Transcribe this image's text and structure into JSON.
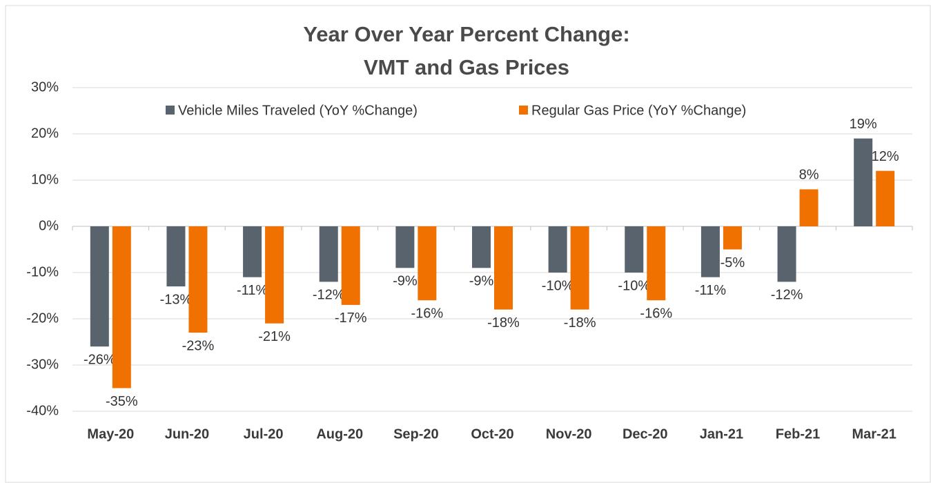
{
  "chart_data": {
    "type": "bar",
    "title": [
      "Year Over Year Percent Change:",
      "VMT and Gas Prices"
    ],
    "categories": [
      "May-20",
      "Jun-20",
      "Jul-20",
      "Aug-20",
      "Sep-20",
      "Oct-20",
      "Nov-20",
      "Dec-20",
      "Jan-21",
      "Feb-21",
      "Mar-21"
    ],
    "series": [
      {
        "name": "Vehicle Miles Traveled (YoY %Change)",
        "color": "#59636d",
        "values": [
          -26,
          -13,
          -11,
          -12,
          -9,
          -9,
          -10,
          -10,
          -11,
          -12,
          19
        ],
        "value_labels": [
          "-26%",
          "-13%",
          "-11%",
          "-12%",
          "-9%",
          "-9%",
          "-10%",
          "-10%",
          "-11%",
          "-12%",
          "19%"
        ]
      },
      {
        "name": "Regular Gas Price (YoY %Change)",
        "color": "#f07000",
        "values": [
          -35,
          -23,
          -21,
          -17,
          -16,
          -18,
          -18,
          -16,
          -5,
          8,
          12
        ],
        "value_labels": [
          "-35%",
          "-23%",
          "-21%",
          "-17%",
          "-16%",
          "-18%",
          "-18%",
          "-16%",
          "-5%",
          "8%",
          "12%"
        ]
      }
    ],
    "ylim": [
      -40,
      30
    ],
    "yticks": [
      {
        "value": -40,
        "label": "-40%"
      },
      {
        "value": -30,
        "label": "-30%"
      },
      {
        "value": -20,
        "label": "-20%"
      },
      {
        "value": -10,
        "label": "-10%"
      },
      {
        "value": 0,
        "label": "0%"
      },
      {
        "value": 10,
        "label": "10%"
      },
      {
        "value": 20,
        "label": "20%"
      },
      {
        "value": 30,
        "label": "30%"
      }
    ],
    "grid": true,
    "legend": "top"
  }
}
